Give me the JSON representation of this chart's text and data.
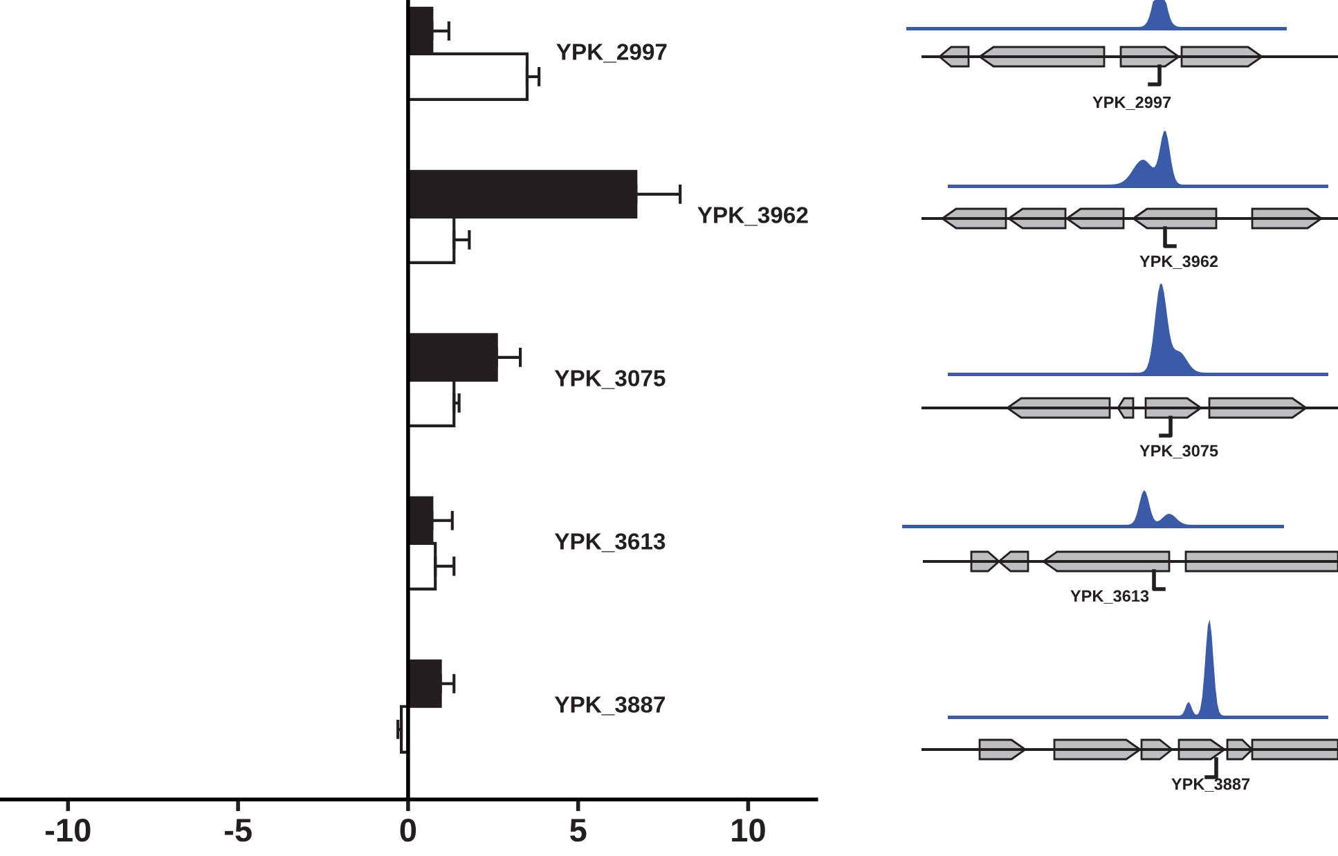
{
  "chart_data": {
    "type": "bar",
    "orientation": "horizontal",
    "categories": [
      "YPK_2997",
      "YPK_3962",
      "YPK_3075",
      "YPK_3613",
      "YPK_3887"
    ],
    "series": [
      {
        "color": "#231f20",
        "values": [
          0.7,
          6.7,
          2.6,
          0.7,
          0.95
        ],
        "errors": [
          0.5,
          1.3,
          0.7,
          0.6,
          0.4
        ]
      },
      {
        "color": "#ffffff",
        "values": [
          3.5,
          1.35,
          1.35,
          0.8,
          -0.2
        ],
        "errors": [
          0.35,
          0.45,
          0.15,
          0.55,
          0.1
        ]
      }
    ],
    "xlim": [
      -12,
      12
    ],
    "xticks": [
      -10,
      -5,
      0,
      5,
      10
    ],
    "annotations": [
      "YPK_2997",
      "YPK_3962",
      "YPK_3075",
      "YPK_3613",
      "YPK_3887"
    ]
  }
}
